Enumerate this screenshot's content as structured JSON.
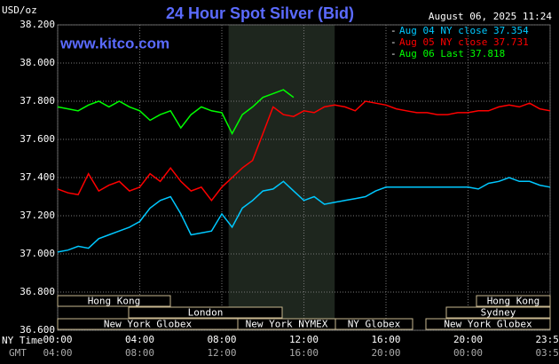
{
  "chart_data": {
    "type": "line",
    "title": "24 Hour Spot Silver (Bid)",
    "subtitle": "www.kitco.com",
    "timestamp": "August 06, 2025 11:24",
    "ylabel": "USD/oz",
    "xlabel": "NY Time",
    "x2label": "GMT",
    "x": [
      0,
      0.5,
      1,
      1.5,
      2,
      2.5,
      3,
      3.5,
      4,
      4.5,
      5,
      5.5,
      6,
      6.5,
      7,
      7.5,
      8,
      8.5,
      9,
      9.5,
      10,
      10.5,
      11,
      11.5,
      12,
      12.5,
      13,
      13.5,
      14,
      14.5,
      15,
      15.5,
      16,
      16.5,
      17,
      17.5,
      18,
      18.5,
      19,
      19.5,
      20,
      20.5,
      21,
      21.5,
      22,
      22.5,
      23,
      23.5,
      24
    ],
    "xlim": [
      0,
      24
    ],
    "xticks": [
      {
        "value": 0,
        "label": "00:00"
      },
      {
        "value": 4,
        "label": "04:00"
      },
      {
        "value": 8,
        "label": "08:00"
      },
      {
        "value": 12,
        "label": "12:00"
      },
      {
        "value": 16,
        "label": "16:00"
      },
      {
        "value": 20,
        "label": "20:00"
      },
      {
        "value": 24,
        "label": "23:59"
      }
    ],
    "x2ticks": [
      "04:00",
      "08:00",
      "12:00",
      "16:00",
      "20:00",
      "00:00",
      "03:59"
    ],
    "ylim": [
      36.6,
      38.2
    ],
    "yticks": [
      {
        "value": 36.6,
        "label": "36.600"
      },
      {
        "value": 36.8,
        "label": "36.800"
      },
      {
        "value": 37.0,
        "label": "37.000"
      },
      {
        "value": 37.2,
        "label": "37.200"
      },
      {
        "value": 37.4,
        "label": "37.400"
      },
      {
        "value": 37.6,
        "label": "37.600"
      },
      {
        "value": 37.8,
        "label": "37.800"
      },
      {
        "value": 38.0,
        "label": "38.000"
      },
      {
        "value": 38.2,
        "label": "38.200"
      }
    ],
    "grid": true,
    "sessions": [
      "Hong Kong",
      "Hong Kong",
      "London",
      "Sydney",
      "New York Globex",
      "New York NYMEX",
      "NY Globex",
      "New York Globex"
    ],
    "series": [
      {
        "name": "Aug 04 NY close 37.354",
        "color": "#00c8ff",
        "values": [
          37.01,
          37.02,
          37.04,
          37.03,
          37.08,
          37.1,
          37.12,
          37.14,
          37.17,
          37.24,
          37.28,
          37.3,
          37.21,
          37.1,
          37.11,
          37.12,
          37.21,
          37.14,
          37.24,
          37.28,
          37.33,
          37.34,
          37.38,
          37.33,
          37.28,
          37.3,
          37.26,
          37.27,
          37.28,
          37.29,
          37.3,
          37.33,
          37.35,
          37.35,
          37.35,
          37.35,
          37.35,
          37.35,
          37.35,
          37.35,
          37.35,
          37.34,
          37.37,
          37.38,
          37.4,
          37.38,
          37.38,
          37.36,
          37.35
        ]
      },
      {
        "name": "Aug 05 NY close 37.731",
        "color": "#ff0000",
        "values": [
          37.34,
          37.32,
          37.31,
          37.42,
          37.33,
          37.36,
          37.38,
          37.33,
          37.35,
          37.42,
          37.38,
          37.45,
          37.38,
          37.33,
          37.35,
          37.28,
          37.35,
          37.4,
          37.45,
          37.49,
          37.63,
          37.77,
          37.73,
          37.72,
          37.75,
          37.74,
          37.77,
          37.78,
          37.77,
          37.75,
          37.8,
          37.79,
          37.78,
          37.76,
          37.75,
          37.74,
          37.74,
          37.73,
          37.73,
          37.74,
          37.74,
          37.75,
          37.75,
          37.77,
          37.78,
          37.77,
          37.79,
          37.76,
          37.75
        ]
      },
      {
        "name": "Aug 06 Last 37.818",
        "color": "#00ff00",
        "values": [
          37.77,
          37.76,
          37.75,
          37.78,
          37.8,
          37.77,
          37.8,
          37.77,
          37.75,
          37.7,
          37.73,
          37.75,
          37.66,
          37.73,
          37.77,
          37.75,
          37.74,
          37.63,
          37.73,
          37.77,
          37.82,
          37.84,
          37.86,
          37.82,
          null,
          null,
          null,
          null,
          null,
          null,
          null,
          null,
          null,
          null,
          null,
          null,
          null,
          null,
          null,
          null,
          null,
          null,
          null,
          null,
          null,
          null,
          null,
          null,
          null
        ]
      }
    ]
  }
}
